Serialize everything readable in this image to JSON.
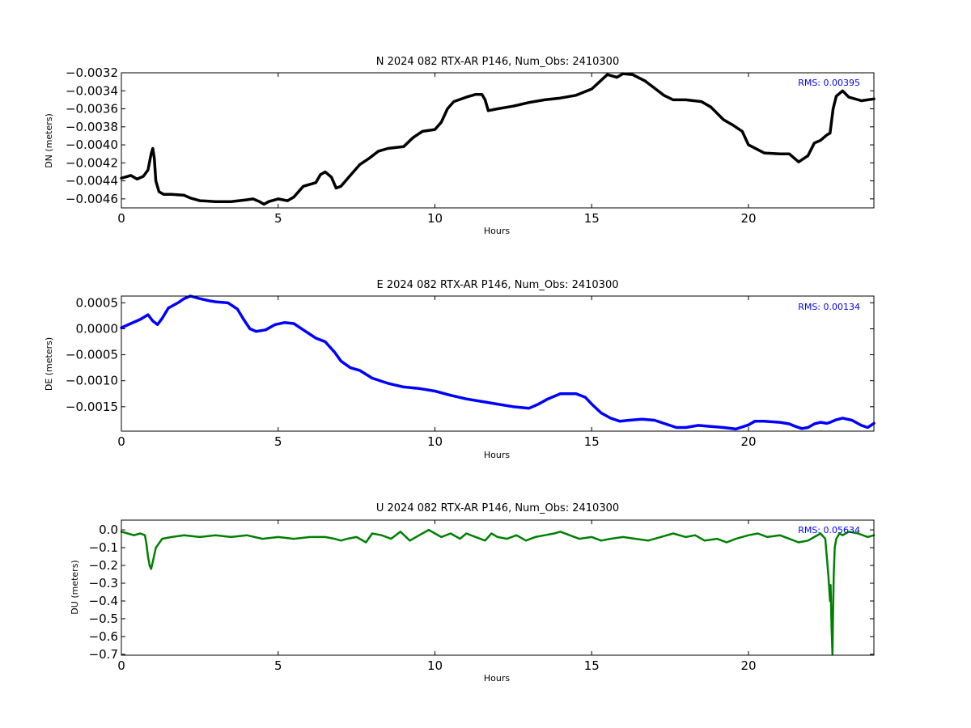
{
  "chart_data": [
    {
      "type": "line",
      "title": "N 2024 082 RTX-AR  P146, Num_Obs: 2410300",
      "xlabel": "Hours",
      "ylabel": "DN (meters)",
      "xlim": [
        0,
        24
      ],
      "ylim": [
        -0.0047,
        -0.0032
      ],
      "xticks": [
        0,
        5,
        10,
        15,
        20
      ],
      "xtick_labels": [
        "0",
        "5",
        "10",
        "15",
        "20"
      ],
      "yticks": [
        -0.0032,
        -0.0034,
        -0.0036,
        -0.0038,
        -0.004,
        -0.0042,
        -0.0044,
        -0.0046
      ],
      "ytick_labels": [
        "−0.0032",
        "−0.0034",
        "−0.0036",
        "−0.0038",
        "−0.0040",
        "−0.0042",
        "−0.0044",
        "−0.0046"
      ],
      "annotation": "RMS:  0.00395",
      "color": "#000000",
      "annotation_color": "#0000ff",
      "grid": false,
      "series": [
        {
          "x": [
            0,
            0.3,
            0.5,
            0.7,
            0.85,
            0.95,
            1.0,
            1.05,
            1.1,
            1.2,
            1.35,
            1.6,
            2.0,
            2.2,
            2.5,
            3.0,
            3.5,
            4.0,
            4.2,
            4.4,
            4.55,
            4.7,
            5.0,
            5.3,
            5.5,
            5.8,
            6.0,
            6.2,
            6.35,
            6.5,
            6.7,
            6.85,
            7.0,
            7.3,
            7.6,
            7.9,
            8.2,
            8.5,
            9.0,
            9.3,
            9.6,
            10.0,
            10.2,
            10.4,
            10.6,
            11.0,
            11.3,
            11.5,
            11.6,
            11.7,
            12.0,
            12.5,
            13.0,
            13.5,
            14.0,
            14.5,
            15.0,
            15.5,
            15.8,
            16.0,
            16.3,
            16.7,
            17.0,
            17.3,
            17.6,
            18.0,
            18.5,
            18.8,
            19.2,
            19.5,
            19.8,
            20.0,
            20.5,
            21.0,
            21.3,
            21.6,
            21.9,
            22.1,
            22.3,
            22.5,
            22.6,
            22.7,
            22.8,
            23.0,
            23.2,
            23.6,
            24.0
          ],
          "y": [
            -0.00437,
            -0.00434,
            -0.00438,
            -0.00435,
            -0.00428,
            -0.0041,
            -0.00404,
            -0.00415,
            -0.0044,
            -0.00452,
            -0.00455,
            -0.00455,
            -0.00456,
            -0.00459,
            -0.00462,
            -0.00463,
            -0.00463,
            -0.00461,
            -0.0046,
            -0.00463,
            -0.00466,
            -0.00463,
            -0.0046,
            -0.00462,
            -0.00458,
            -0.00446,
            -0.00444,
            -0.00442,
            -0.00433,
            -0.0043,
            -0.00436,
            -0.00448,
            -0.00446,
            -0.00434,
            -0.00422,
            -0.00415,
            -0.00407,
            -0.00404,
            -0.00402,
            -0.00392,
            -0.00385,
            -0.00383,
            -0.00375,
            -0.0036,
            -0.00352,
            -0.00347,
            -0.00344,
            -0.00344,
            -0.0035,
            -0.00362,
            -0.0036,
            -0.00357,
            -0.00353,
            -0.0035,
            -0.00348,
            -0.00345,
            -0.00338,
            -0.00322,
            -0.00325,
            -0.00321,
            -0.00322,
            -0.00329,
            -0.00337,
            -0.00345,
            -0.0035,
            -0.0035,
            -0.00352,
            -0.00358,
            -0.00372,
            -0.00378,
            -0.00385,
            -0.004,
            -0.00409,
            -0.0041,
            -0.0041,
            -0.00419,
            -0.00412,
            -0.00398,
            -0.00395,
            -0.00389,
            -0.00387,
            -0.0036,
            -0.00346,
            -0.0034,
            -0.00347,
            -0.00351,
            -0.00349
          ]
        }
      ]
    },
    {
      "type": "line",
      "title": "E 2024 082 RTX-AR  P146, Num_Obs: 2410300",
      "xlabel": "Hours",
      "ylabel": "DE (meters)",
      "xlim": [
        0,
        24
      ],
      "ylim": [
        -0.00197,
        0.00063
      ],
      "xticks": [
        0,
        5,
        10,
        15,
        20
      ],
      "xtick_labels": [
        "0",
        "5",
        "10",
        "15",
        "20"
      ],
      "yticks": [
        0.0005,
        0.0,
        -0.0005,
        -0.001,
        -0.0015
      ],
      "ytick_labels": [
        "0.0005",
        "0.0000",
        "−0.0005",
        "−0.0010",
        "−0.0015"
      ],
      "annotation": "RMS:  0.00134",
      "color": "#0000ff",
      "annotation_color": "#0000ff",
      "grid": false,
      "series": [
        {
          "x": [
            0,
            0.3,
            0.6,
            0.85,
            1.0,
            1.15,
            1.3,
            1.5,
            1.8,
            2.0,
            2.2,
            2.5,
            2.8,
            3.0,
            3.4,
            3.7,
            3.9,
            4.1,
            4.3,
            4.6,
            4.9,
            5.2,
            5.5,
            5.8,
            6.2,
            6.5,
            6.8,
            7.0,
            7.3,
            7.6,
            8.0,
            8.5,
            9.0,
            9.5,
            10.0,
            10.5,
            11.0,
            11.5,
            12.0,
            12.5,
            13.0,
            13.3,
            13.6,
            14.0,
            14.5,
            14.8,
            15.0,
            15.3,
            15.6,
            15.9,
            16.2,
            16.6,
            17.0,
            17.3,
            17.7,
            18.0,
            18.4,
            18.8,
            19.2,
            19.6,
            20.0,
            20.2,
            20.5,
            21.0,
            21.3,
            21.5,
            21.7,
            21.9,
            22.1,
            22.3,
            22.5,
            22.6,
            22.8,
            23.0,
            23.3,
            23.6,
            23.8,
            24.0
          ],
          "y": [
            2e-05,
            0.0001,
            0.00018,
            0.00027,
            0.00015,
            8e-05,
            0.0002,
            0.0004,
            0.0005,
            0.00058,
            0.00063,
            0.00058,
            0.00054,
            0.00052,
            0.0005,
            0.00038,
            0.00018,
            0.0,
            -5e-05,
            -2e-05,
            8e-05,
            0.00012,
            0.0001,
            -2e-05,
            -0.00018,
            -0.00025,
            -0.00045,
            -0.00062,
            -0.00075,
            -0.0008,
            -0.00095,
            -0.00105,
            -0.00112,
            -0.00115,
            -0.0012,
            -0.00128,
            -0.00135,
            -0.0014,
            -0.00145,
            -0.0015,
            -0.00153,
            -0.00145,
            -0.00135,
            -0.00125,
            -0.00125,
            -0.00132,
            -0.00145,
            -0.00162,
            -0.00172,
            -0.00178,
            -0.00176,
            -0.00174,
            -0.00176,
            -0.00182,
            -0.0019,
            -0.0019,
            -0.00186,
            -0.00188,
            -0.0019,
            -0.00193,
            -0.00185,
            -0.00178,
            -0.00178,
            -0.0018,
            -0.00183,
            -0.00188,
            -0.00192,
            -0.0019,
            -0.00183,
            -0.0018,
            -0.00182,
            -0.0018,
            -0.00175,
            -0.00172,
            -0.00176,
            -0.00186,
            -0.0019,
            -0.00182
          ]
        }
      ]
    },
    {
      "type": "line",
      "title": "U 2024 082 RTX-AR  P146, Num_Obs: 2410300",
      "xlabel": "Hours",
      "ylabel": "DU (meters)",
      "xlim": [
        0,
        24
      ],
      "ylim": [
        -0.705,
        0.055
      ],
      "xticks": [
        0,
        5,
        10,
        15,
        20
      ],
      "xtick_labels": [
        "0",
        "5",
        "10",
        "15",
        "20"
      ],
      "yticks": [
        0.0,
        -0.1,
        -0.2,
        -0.3,
        -0.4,
        -0.5,
        -0.6,
        -0.7
      ],
      "ytick_labels": [
        "0.0",
        "−0.1",
        "−0.2",
        "−0.3",
        "−0.4",
        "−0.5",
        "−0.6",
        "−0.7"
      ],
      "annotation": "RMS:  0.05634",
      "color": "#008000",
      "annotation_color": "#0000ff",
      "grid": false,
      "series": [
        {
          "x": [
            0,
            0.2,
            0.4,
            0.6,
            0.75,
            0.8,
            0.85,
            0.9,
            0.95,
            1.0,
            1.1,
            1.3,
            1.6,
            2.0,
            2.5,
            3.0,
            3.5,
            4.0,
            4.5,
            5.0,
            5.5,
            6.0,
            6.5,
            6.8,
            7.0,
            7.2,
            7.5,
            7.8,
            8.0,
            8.3,
            8.6,
            8.9,
            9.2,
            9.5,
            9.8,
            10.0,
            10.2,
            10.5,
            10.8,
            11.0,
            11.3,
            11.6,
            11.8,
            12.0,
            12.3,
            12.6,
            12.9,
            13.2,
            13.5,
            13.8,
            14.0,
            14.3,
            14.6,
            15.0,
            15.3,
            15.6,
            16.0,
            16.4,
            16.8,
            17.2,
            17.6,
            18.0,
            18.3,
            18.6,
            19.0,
            19.3,
            19.6,
            20.0,
            20.3,
            20.6,
            21.0,
            21.3,
            21.6,
            21.9,
            22.1,
            22.3,
            22.45,
            22.55,
            22.6,
            22.62,
            22.65,
            22.68,
            22.7,
            22.72,
            22.75,
            22.8,
            22.9,
            23.0,
            23.2,
            23.5,
            23.8,
            24.0
          ],
          "y": [
            -0.01,
            -0.02,
            -0.03,
            -0.02,
            -0.03,
            -0.08,
            -0.15,
            -0.2,
            -0.22,
            -0.18,
            -0.1,
            -0.05,
            -0.04,
            -0.03,
            -0.04,
            -0.03,
            -0.04,
            -0.03,
            -0.05,
            -0.04,
            -0.05,
            -0.04,
            -0.04,
            -0.05,
            -0.06,
            -0.05,
            -0.04,
            -0.07,
            -0.02,
            -0.03,
            -0.05,
            -0.01,
            -0.06,
            -0.03,
            0.0,
            -0.02,
            -0.04,
            -0.02,
            -0.05,
            -0.02,
            -0.04,
            -0.06,
            -0.02,
            -0.04,
            -0.05,
            -0.03,
            -0.06,
            -0.04,
            -0.03,
            -0.02,
            -0.01,
            -0.03,
            -0.05,
            -0.04,
            -0.06,
            -0.05,
            -0.04,
            -0.05,
            -0.06,
            -0.04,
            -0.02,
            -0.04,
            -0.03,
            -0.06,
            -0.05,
            -0.07,
            -0.05,
            -0.03,
            -0.02,
            -0.04,
            -0.03,
            -0.05,
            -0.07,
            -0.06,
            -0.04,
            -0.02,
            -0.05,
            -0.26,
            -0.4,
            -0.31,
            -0.55,
            -0.7,
            -0.45,
            -0.25,
            -0.1,
            -0.05,
            -0.02,
            -0.03,
            -0.01,
            -0.02,
            -0.04,
            -0.03
          ]
        }
      ]
    }
  ]
}
